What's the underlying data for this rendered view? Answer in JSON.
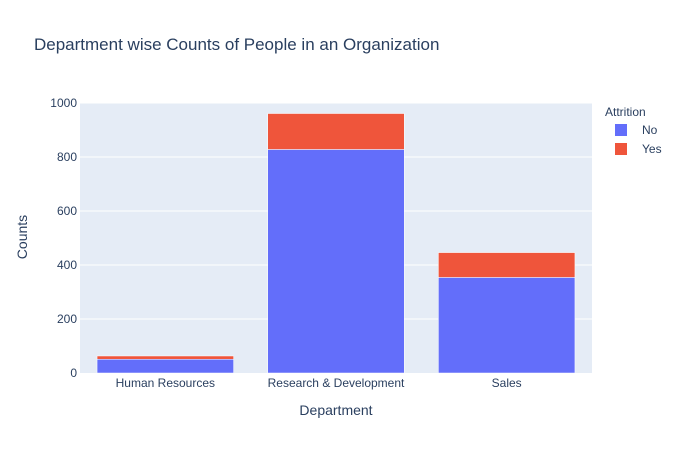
{
  "chart_data": {
    "type": "bar",
    "barmode": "stack",
    "title": "Department wise Counts of People in an Organization",
    "xlabel": "Department",
    "ylabel": "Counts",
    "categories": [
      "Human Resources",
      "Research & Development",
      "Sales"
    ],
    "series": [
      {
        "name": "No",
        "color": "#636efa",
        "values": [
          51,
          828,
          354
        ]
      },
      {
        "name": "Yes",
        "color": "#ef553b",
        "values": [
          12,
          133,
          92
        ]
      }
    ],
    "ylim": [
      0,
      1000
    ],
    "yticks": [
      0,
      200,
      400,
      600,
      800,
      1000
    ],
    "grid": true,
    "legend": {
      "title": "Attrition",
      "position": "top-right"
    },
    "plot_background": "#e5ecf6"
  }
}
